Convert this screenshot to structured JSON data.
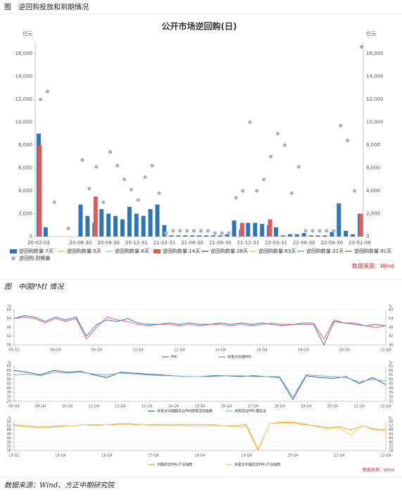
{
  "captions": {
    "fig1": "图　逆回购投放和到期情况",
    "fig2": "图　中国PMI 情况"
  },
  "footer": "数据来源：Wind、方正中期研究院",
  "chart_data": [
    {
      "type": "bar",
      "title": "公开市场逆回购(日)",
      "ylabel": "亿元",
      "y2label": "亿元",
      "source": "数据来源：Wind",
      "categories": [
        "20-02-03",
        null,
        null,
        null,
        null,
        null,
        "20-06-30",
        null,
        null,
        null,
        "20-09-30",
        null,
        null,
        null,
        "20-12-31",
        null,
        null,
        null,
        "21-03-31",
        null,
        null,
        null,
        "21-06-30",
        null,
        null,
        null,
        "21-09-30",
        null,
        null,
        null,
        "21-12-31",
        null,
        null,
        null,
        "22-03-31",
        null,
        null,
        null,
        "22-06-30",
        null,
        null,
        null,
        "22-09-30",
        null,
        null,
        null,
        "23-01-06"
      ],
      "ylim": [
        0,
        17000
      ],
      "yticks": [
        0,
        {
          "value": 2000,
          "label": "2,000"
        },
        {
          "value": 4000,
          "label": "4,000"
        },
        {
          "value": 6000,
          "label": "6,000"
        },
        {
          "value": 8000,
          "label": "8,000"
        },
        {
          "value": 10000,
          "label": "10,000"
        },
        {
          "value": 12000,
          "label": "12,000"
        },
        {
          "value": 14000,
          "label": "14,000"
        },
        {
          "value": 16000,
          "label": "16,000"
        }
      ],
      "series": [
        {
          "name": "逆回购数量:7天",
          "color": "#2e75b6",
          "mark": "bar",
          "values": [
            9000,
            800,
            0,
            0,
            0,
            0,
            2800,
            1800,
            1200,
            2400,
            2000,
            1800,
            1500,
            2600,
            2000,
            1800,
            2400,
            2800,
            1000,
            100,
            100,
            100,
            100,
            100,
            100,
            100,
            100,
            200,
            1400,
            600,
            1200,
            1200,
            1100,
            1000,
            800,
            100,
            200,
            200,
            300,
            100,
            100,
            100,
            400,
            2900,
            500,
            200,
            2000
          ]
        },
        {
          "name": "逆回购数量:5天",
          "color": "#f4a23c",
          "mark": "line",
          "values": [
            null,
            null,
            null,
            null,
            null,
            null,
            null,
            null,
            null,
            null,
            null,
            null,
            null,
            null,
            null,
            null,
            null,
            null,
            null,
            null,
            null,
            null,
            null,
            null,
            null,
            null,
            null,
            null,
            null,
            null,
            null,
            null,
            null,
            null,
            null,
            null,
            null,
            null,
            null,
            null,
            null,
            null,
            null,
            null,
            null,
            null,
            null
          ]
        },
        {
          "name": "逆回购数量:6天",
          "color": "#7fc4e0",
          "mark": "line",
          "values": [
            null,
            null,
            null,
            null,
            null,
            null,
            null,
            null,
            null,
            null,
            null,
            null,
            null,
            null,
            null,
            null,
            null,
            null,
            null,
            null,
            null,
            null,
            null,
            null,
            null,
            null,
            null,
            null,
            null,
            null,
            null,
            null,
            null,
            null,
            null,
            null,
            null,
            null,
            null,
            null,
            null,
            null,
            null,
            null,
            null,
            null,
            null
          ]
        },
        {
          "name": "逆回购数量:14天",
          "color": "#e05a5a",
          "mark": "bar",
          "values": [
            8000,
            null,
            null,
            null,
            null,
            null,
            null,
            null,
            3500,
            null,
            null,
            null,
            null,
            null,
            null,
            null,
            null,
            null,
            null,
            null,
            null,
            null,
            null,
            null,
            null,
            null,
            null,
            null,
            null,
            1200,
            null,
            null,
            null,
            1500,
            null,
            null,
            null,
            null,
            null,
            null,
            null,
            null,
            null,
            null,
            null,
            null,
            2000
          ]
        },
        {
          "name": "逆回购数量:28天",
          "color": "#2f3e6e",
          "mark": "line",
          "values": [
            null,
            null,
            null,
            null,
            null,
            null,
            null,
            null,
            null,
            null,
            null,
            null,
            null,
            null,
            null,
            null,
            null,
            null,
            null,
            null,
            null,
            null,
            null,
            null,
            null,
            null,
            null,
            null,
            null,
            null,
            null,
            null,
            null,
            null,
            null,
            null,
            null,
            null,
            null,
            null,
            null,
            null,
            null,
            null,
            null,
            null,
            null
          ]
        },
        {
          "name": "逆回购数量:63天",
          "color": "#f0c040",
          "mark": "line",
          "values": [
            null,
            null,
            null,
            null,
            null,
            null,
            null,
            null,
            null,
            null,
            null,
            null,
            null,
            null,
            null,
            null,
            null,
            null,
            null,
            null,
            null,
            null,
            null,
            null,
            null,
            null,
            null,
            null,
            null,
            null,
            null,
            null,
            null,
            null,
            null,
            null,
            null,
            null,
            null,
            null,
            null,
            null,
            null,
            null,
            null,
            null,
            null
          ]
        },
        {
          "name": "逆回购数量:21天",
          "color": "#5aa06a",
          "mark": "line",
          "values": [
            null,
            null,
            null,
            null,
            null,
            null,
            null,
            null,
            null,
            null,
            null,
            null,
            null,
            null,
            null,
            null,
            null,
            null,
            null,
            null,
            null,
            null,
            null,
            null,
            null,
            null,
            null,
            null,
            null,
            null,
            null,
            null,
            null,
            null,
            null,
            null,
            null,
            null,
            null,
            null,
            null,
            null,
            null,
            null,
            null,
            null,
            null
          ]
        },
        {
          "name": "逆回购数量:91天",
          "color": "#8b5a3c",
          "mark": "line",
          "values": [
            null,
            null,
            null,
            null,
            null,
            null,
            null,
            null,
            null,
            null,
            null,
            null,
            null,
            null,
            null,
            null,
            null,
            null,
            null,
            null,
            null,
            null,
            null,
            null,
            null,
            null,
            null,
            null,
            null,
            null,
            null,
            null,
            null,
            null,
            null,
            null,
            null,
            null,
            null,
            null,
            null,
            null,
            null,
            null,
            null,
            null,
            null
          ]
        },
        {
          "name": "逆回购:到期量",
          "color": "#a9b1bd",
          "mark": "scatter",
          "values": [
            12000,
            12700,
            3000,
            null,
            700,
            null,
            6700,
            4200,
            6100,
            3000,
            7400,
            6200,
            5000,
            4100,
            3200,
            5200,
            6200,
            3800,
            300,
            500,
            500,
            500,
            500,
            500,
            500,
            300,
            300,
            300,
            3400,
            4000,
            10000,
            4000,
            5000,
            7000,
            9000,
            8000,
            3800,
            6100,
            500,
            500,
            500,
            500,
            500,
            9700,
            8400,
            4000,
            16600
          ]
        }
      ]
    },
    {
      "type": "line",
      "ylabel": "%",
      "y2label": "%",
      "categories": [
        "05-Q1",
        null,
        null,
        null,
        "08-Q4",
        null,
        null,
        null,
        "09-Q4",
        null,
        null,
        null,
        "10-Q4",
        null,
        null,
        null,
        "12-Q4",
        null,
        null,
        null,
        "14-Q4",
        null,
        null,
        null,
        "16-Q4",
        null,
        null,
        null,
        "18-Q4",
        null,
        null,
        null,
        "20-Q4",
        null,
        null,
        null,
        "22-Q4"
      ],
      "ylim": [
        36,
        60
      ],
      "yticks": [
        36,
        42,
        48,
        54,
        60
      ],
      "series": [
        {
          "name": "PMI",
          "color": "#4472c4",
          "values": [
            54,
            56,
            55,
            52,
            55,
            53,
            55,
            42,
            50,
            53,
            52,
            54,
            51,
            50,
            50,
            51,
            50,
            51,
            50,
            50,
            51,
            50,
            51,
            50,
            51,
            50,
            49,
            50,
            50,
            50,
            36,
            52,
            51,
            50,
            49,
            50,
            49
          ]
        },
        {
          "name": "非官方中国PMI",
          "color": "#e06666",
          "values": [
            54,
            55,
            54,
            51,
            54,
            52,
            54,
            40,
            48,
            55,
            53,
            52,
            50,
            49,
            50,
            50,
            49,
            50,
            49,
            50,
            50,
            49,
            50,
            49,
            50,
            51,
            50,
            50,
            51,
            51,
            40,
            53,
            51,
            51,
            49,
            48,
            49
          ]
        }
      ]
    },
    {
      "type": "line",
      "ylabel": "%",
      "y2label": "%",
      "categories": [
        "08-Q4",
        null,
        "09-Q4",
        null,
        "10-Q4",
        null,
        "11-Q4",
        null,
        "12-Q4",
        null,
        "13-Q4",
        null,
        "14-Q4",
        null,
        "15-Q4",
        null,
        "16-Q4",
        null,
        "17-Q4",
        null,
        "18-Q4",
        null,
        "19-Q4",
        null,
        "20-Q4",
        null,
        "21-Q4",
        null,
        "22-Q4"
      ],
      "ylim": [
        25,
        65
      ],
      "yticks": [
        25,
        30,
        35,
        40,
        45,
        50,
        55,
        60,
        65
      ],
      "series": [
        {
          "name": "非官方中国服务业PMI经营活动指数",
          "color": "#3b5b8c",
          "values": [
            60,
            58,
            55,
            60,
            58,
            59,
            55,
            52,
            58,
            57,
            56,
            55,
            54,
            53,
            53,
            54,
            54,
            53,
            54,
            53,
            52,
            27,
            54,
            52,
            51,
            53,
            45,
            52,
            44
          ]
        },
        {
          "name": "非制造业PMI:服务业",
          "color": "#6fb3dc",
          "values": [
            55,
            56,
            54,
            58,
            57,
            58,
            56,
            55,
            57,
            56,
            55,
            54,
            54,
            53,
            53,
            53,
            54,
            54,
            53,
            53,
            53,
            30,
            55,
            54,
            53,
            52,
            47,
            50,
            48
          ]
        }
      ]
    },
    {
      "type": "line",
      "ylabel": "%",
      "y2label": "%",
      "source": "数据来源：Wind",
      "categories": [
        "15-Q1",
        null,
        null,
        null,
        "15-Q4",
        null,
        null,
        null,
        "16-Q4",
        null,
        null,
        null,
        "17-Q4",
        null,
        null,
        null,
        "18-Q4",
        null,
        null,
        null,
        "19-Q4",
        null,
        null,
        null,
        "20-Q4",
        null,
        null,
        null,
        "21-Q4",
        null,
        null,
        null,
        "22-Q4"
      ],
      "ylim": [
        28,
        56
      ],
      "yticks": [
        28,
        32,
        36,
        40,
        44,
        48,
        52,
        56
      ],
      "series": [
        {
          "name": "中国综合PMI:产出指数",
          "color": "#f0a030",
          "values": [
            53,
            52,
            51,
            51,
            52,
            52,
            53,
            53,
            53,
            54,
            54,
            53,
            53,
            53,
            53,
            53,
            53,
            53,
            52,
            52,
            53,
            29,
            54,
            55,
            55,
            53,
            52,
            50,
            51,
            48,
            52,
            49,
            48
          ]
        },
        {
          "name": "非官方中国综合PMI:产出指数",
          "color": "#f5cc70",
          "values": [
            52,
            51,
            50,
            50,
            51,
            52,
            53,
            52,
            53,
            53,
            53,
            53,
            52,
            52,
            52,
            52,
            51,
            52,
            52,
            51,
            51,
            28,
            54,
            56,
            56,
            54,
            51,
            49,
            50,
            43,
            52,
            48,
            47
          ]
        }
      ]
    }
  ]
}
